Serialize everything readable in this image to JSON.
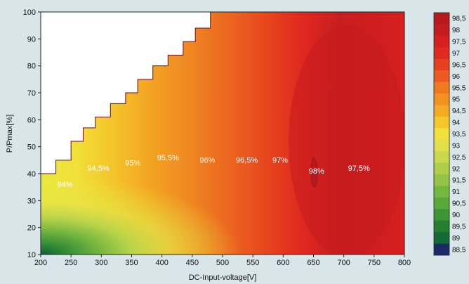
{
  "chart_data": {
    "type": "heatmap",
    "xlabel": "DC-Input-voltage[V]",
    "ylabel": "P/Pmax[%]",
    "xlim": [
      200,
      800
    ],
    "ylim": [
      10,
      100
    ],
    "x_ticks": [
      200,
      250,
      300,
      350,
      400,
      450,
      500,
      550,
      600,
      650,
      700,
      750,
      800
    ],
    "y_ticks": [
      10,
      20,
      30,
      40,
      50,
      60,
      70,
      80,
      90,
      100
    ],
    "grid": false,
    "colorbar": {
      "placement": "right",
      "levels": [
        "98,5",
        "98",
        "97,5",
        "97",
        "96,5",
        "96",
        "95,5",
        "95",
        "94,5",
        "94",
        "93,5",
        "93",
        "92,5",
        "92",
        "91,5",
        "91",
        "90,5",
        "90",
        "89,5",
        "89",
        "88,5"
      ],
      "colors": [
        "#b51a1e",
        "#c41c1e",
        "#d61f1f",
        "#e0291f",
        "#e6401e",
        "#ec5a1f",
        "#ef7a1f",
        "#f29220",
        "#f4aa22",
        "#f5c72b",
        "#f2e03d",
        "#dfe04a",
        "#c8da4c",
        "#afcf4a",
        "#93c446",
        "#75b840",
        "#58a83a",
        "#3e9535",
        "#267e31",
        "#126a34",
        "#1a2a66"
      ]
    },
    "max_power_limit_curve": [
      [
        200,
        40
      ],
      [
        225,
        40
      ],
      [
        225,
        45
      ],
      [
        250,
        45
      ],
      [
        250,
        52
      ],
      [
        270,
        52
      ],
      [
        270,
        57
      ],
      [
        290,
        57
      ],
      [
        290,
        61
      ],
      [
        315,
        61
      ],
      [
        315,
        66
      ],
      [
        340,
        66
      ],
      [
        340,
        70
      ],
      [
        360,
        70
      ],
      [
        360,
        75
      ],
      [
        385,
        75
      ],
      [
        385,
        80
      ],
      [
        410,
        80
      ],
      [
        410,
        84
      ],
      [
        435,
        84
      ],
      [
        435,
        89
      ],
      [
        455,
        89
      ],
      [
        455,
        94
      ],
      [
        480,
        94
      ],
      [
        480,
        100
      ]
    ],
    "contour_labels": [
      {
        "text": "94%",
        "v": 240,
        "p": 35
      },
      {
        "text": "94,5%",
        "v": 295,
        "p": 41
      },
      {
        "text": "95%",
        "v": 352,
        "p": 43
      },
      {
        "text": "95,5%",
        "v": 410,
        "p": 45
      },
      {
        "text": "96%",
        "v": 475,
        "p": 44
      },
      {
        "text": "96,5%",
        "v": 540,
        "p": 44
      },
      {
        "text": "97%",
        "v": 595,
        "p": 44
      },
      {
        "text": "98%",
        "v": 655,
        "p": 40
      },
      {
        "text": "97,5%",
        "v": 725,
        "p": 41
      }
    ]
  }
}
